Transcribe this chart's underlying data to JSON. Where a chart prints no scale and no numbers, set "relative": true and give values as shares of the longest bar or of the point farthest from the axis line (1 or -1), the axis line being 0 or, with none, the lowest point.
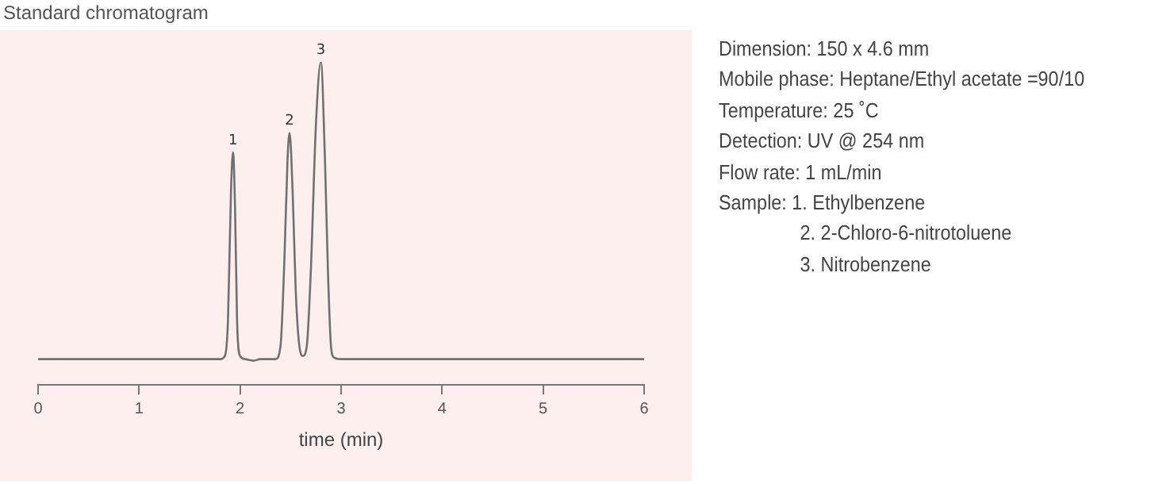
{
  "chart_data": {
    "type": "line",
    "title": "Standard chromatogram",
    "xlabel": "time (min)",
    "relative": true,
    "xlim": [
      0,
      6
    ],
    "xticks": [
      0,
      1,
      2,
      3,
      4,
      5,
      6
    ],
    "grid": false,
    "legend": false,
    "marker": "none",
    "line_style": "solid",
    "x": [
      0,
      1,
      1.8,
      1.85,
      1.88,
      1.91,
      1.93,
      1.95,
      1.97,
      2.0,
      2.05,
      2.13,
      2.2,
      2.35,
      2.4,
      2.44,
      2.47,
      2.49,
      2.52,
      2.55,
      2.58,
      2.62,
      2.66,
      2.7,
      2.75,
      2.8,
      2.84,
      2.87,
      2.9,
      2.93,
      3,
      4,
      5,
      6
    ],
    "series": [
      {
        "color": "#707070",
        "values": [
          0.08,
          0.08,
          0.08,
          0.09,
          0.2,
          0.6,
          0.72,
          0.55,
          0.2,
          0.09,
          0.08,
          0.075,
          0.08,
          0.08,
          0.12,
          0.4,
          0.7,
          0.78,
          0.6,
          0.3,
          0.14,
          0.09,
          0.12,
          0.35,
          0.8,
          1.0,
          0.7,
          0.35,
          0.12,
          0.085,
          0.08,
          0.08,
          0.08,
          0.08
        ]
      }
    ],
    "annotations": [
      {
        "text": "1",
        "x": 1.93,
        "y": 0.72
      },
      {
        "text": "2",
        "x": 2.49,
        "y": 0.78
      },
      {
        "text": "3",
        "x": 2.8,
        "y": 1.0
      },
      "Dimension: 150 x 4.6 mm",
      "Mobile phase: Heptane/Ethyl acetate =90/10",
      "Temperature: 25 ˚C",
      "Detection: UV @ 254 nm",
      "Flow rate: 1 mL/min",
      "Sample: 1. Ethylbenzene\n2. 2-Chloro-6-nitrotoluene\n3. Nitrobenzene"
    ]
  }
}
